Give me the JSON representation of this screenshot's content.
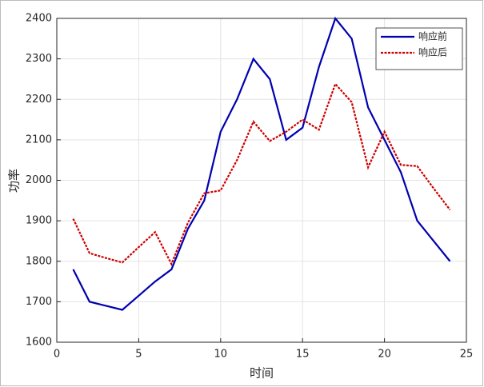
{
  "chart_data": {
    "type": "line",
    "xlabel": "时间",
    "ylabel": "功率",
    "x": [
      1,
      2,
      3,
      4,
      5,
      6,
      7,
      8,
      9,
      10,
      11,
      12,
      13,
      14,
      15,
      16,
      17,
      18,
      19,
      20,
      21,
      22,
      23,
      24
    ],
    "series": [
      {
        "name": "响应前",
        "color": "#0000b0",
        "style": "solid",
        "values": [
          1780,
          1700,
          1690,
          1680,
          1715,
          1750,
          1780,
          1880,
          1950,
          2120,
          2200,
          2300,
          2250,
          2100,
          2130,
          2280,
          2400,
          2350,
          2180,
          2100,
          2020,
          1900,
          1850,
          1800
        ]
      },
      {
        "name": "响应后",
        "color": "#cc0000",
        "style": "dotted",
        "values": [
          1905,
          1820,
          1808,
          1797,
          1835,
          1872,
          1793,
          1895,
          1968,
          1975,
          2050,
          2145,
          2097,
          2120,
          2150,
          2125,
          2238,
          2193,
          2032,
          2120,
          2038,
          2035,
          1980,
          1927
        ]
      }
    ],
    "xlim": [
      0,
      25
    ],
    "xticks": [
      0,
      5,
      10,
      15,
      20,
      25
    ],
    "ylim": [
      1600,
      2400
    ],
    "yticks": [
      1600,
      1700,
      1800,
      1900,
      2000,
      2100,
      2200,
      2300,
      2400
    ],
    "grid": true,
    "legend": "top-right"
  }
}
